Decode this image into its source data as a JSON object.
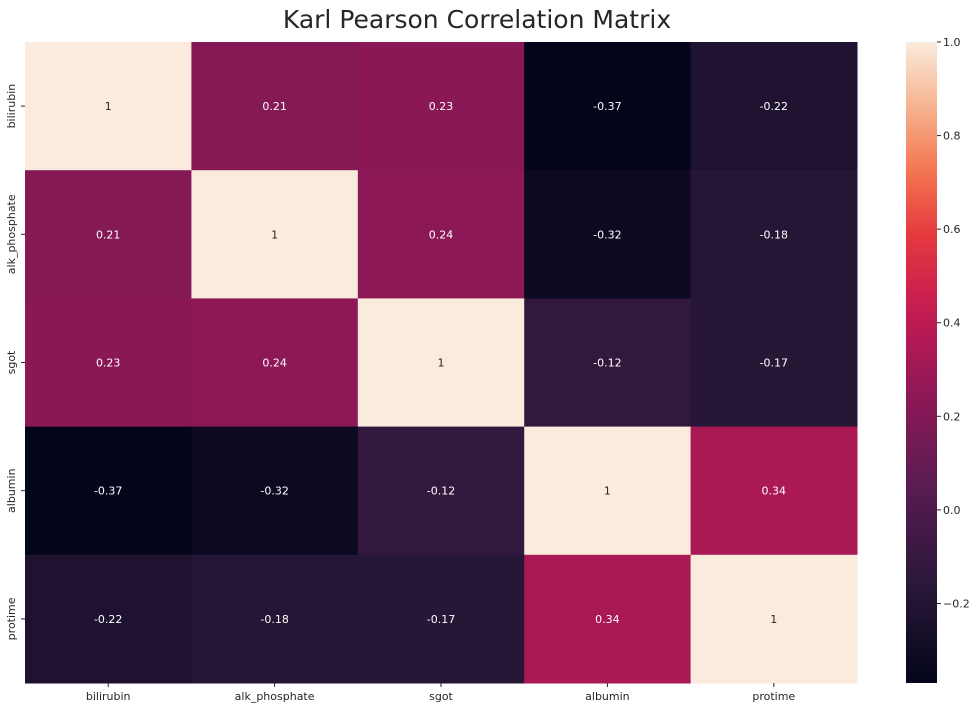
{
  "chart_data": {
    "type": "heatmap",
    "title": "Karl Pearson Correlation Matrix",
    "xlabel": "",
    "ylabel": "",
    "x_categories": [
      "bilirubin",
      "alk_phosphate",
      "sgot",
      "albumin",
      "protime"
    ],
    "y_categories": [
      "bilirubin",
      "alk_phosphate",
      "sgot",
      "albumin",
      "protime"
    ],
    "values": [
      [
        1,
        0.21,
        0.23,
        -0.37,
        -0.22
      ],
      [
        0.21,
        1,
        0.24,
        -0.32,
        -0.18
      ],
      [
        0.23,
        0.24,
        1,
        -0.12,
        -0.17
      ],
      [
        -0.37,
        -0.32,
        -0.12,
        1,
        0.34
      ],
      [
        -0.22,
        -0.18,
        -0.17,
        0.34,
        1
      ]
    ],
    "annotations": [
      [
        "1",
        "0.21",
        "0.23",
        "-0.37",
        "-0.22"
      ],
      [
        "0.21",
        "1",
        "0.24",
        "-0.32",
        "-0.18"
      ],
      [
        "0.23",
        "0.24",
        "1",
        "-0.12",
        "-0.17"
      ],
      [
        "-0.37",
        "-0.32",
        "-0.12",
        "1",
        "0.34"
      ],
      [
        "-0.22",
        "-0.18",
        "-0.17",
        "0.34",
        "1"
      ]
    ],
    "colormap": "rocket",
    "vmin": -0.37,
    "vmax": 1.0,
    "colorbar_ticks": [
      1.0,
      0.8,
      0.6,
      0.4,
      0.2,
      0.0,
      -0.2
    ],
    "colorbar_tick_labels": [
      "1.0",
      "0.8",
      "0.6",
      "0.4",
      "0.2",
      "0.0",
      "−0.2"
    ],
    "legend_position": "right",
    "grid": false
  }
}
